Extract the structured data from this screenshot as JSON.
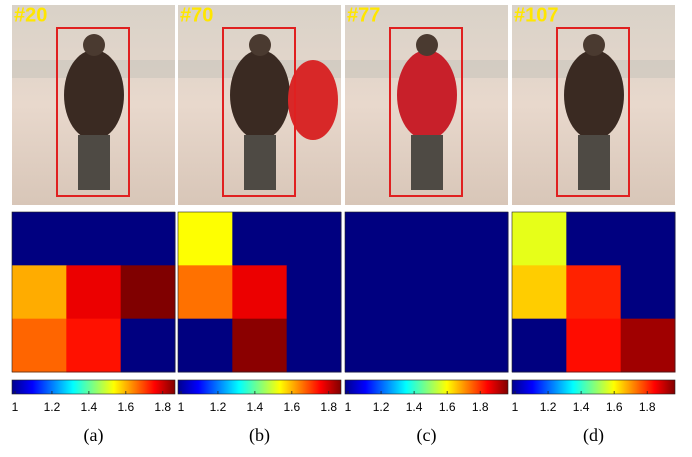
{
  "figure": {
    "panels": [
      {
        "frame_label": "#20",
        "caption": "(a)",
        "clim": [
          1,
          1.85
        ],
        "colorbar_ticks": [
          1,
          1.2,
          1.4,
          1.6,
          1.8
        ],
        "heatmap": [
          [
            1,
            1,
            1
          ],
          [
            1.6,
            1.76,
            1.85
          ],
          [
            1.66,
            1.73,
            1
          ]
        ]
      },
      {
        "frame_label": "#70",
        "caption": "(b)",
        "clim": [
          1,
          1.85
        ],
        "colorbar_ticks": [
          1,
          1.2,
          1.4,
          1.6,
          1.8
        ],
        "heatmap": [
          [
            1.53,
            1,
            1
          ],
          [
            1.65,
            1.76,
            1
          ],
          [
            1,
            1.84,
            1
          ]
        ]
      },
      {
        "frame_label": "#77",
        "caption": "(c)",
        "clim": [
          1,
          1.95
        ],
        "colorbar_ticks": [
          1,
          1.2,
          1.4,
          1.6,
          1.8
        ],
        "heatmap": [
          [
            1,
            1,
            1
          ],
          [
            1,
            1,
            1
          ],
          [
            1,
            1,
            1
          ]
        ]
      },
      {
        "frame_label": "#107",
        "caption": "(d)",
        "clim": [
          1,
          1.95
        ],
        "colorbar_ticks": [
          1,
          1.2,
          1.4,
          1.6,
          1.8
        ],
        "heatmap": [
          [
            1.57,
            1,
            1
          ],
          [
            1.64,
            1.8,
            1
          ],
          [
            1,
            1.82,
            1.92
          ]
        ]
      }
    ]
  }
}
